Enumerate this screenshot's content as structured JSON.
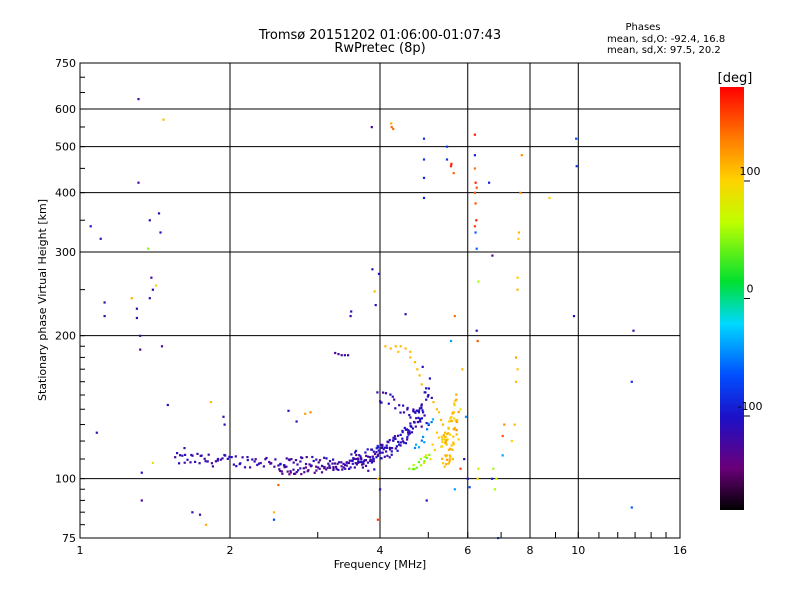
{
  "chart_data": {
    "type": "scatter",
    "title": "Tromsø 20151202 01:06:00-01:07:43",
    "subtitle": "RwPretec (8p)",
    "xlabel": "Frequency [MHz]",
    "ylabel": "Stationary phase Virtual Height [km]",
    "x_scale": "log",
    "y_scale": "log",
    "xlim": [
      1,
      16
    ],
    "ylim": [
      75,
      750
    ],
    "x_ticks": [
      {
        "value": 1,
        "label": "1"
      },
      {
        "value": 2,
        "label": "2"
      },
      {
        "value": 4,
        "label": "4"
      },
      {
        "value": 6,
        "label": "6"
      },
      {
        "value": 8,
        "label": "8"
      },
      {
        "value": 10,
        "label": "10"
      },
      {
        "value": 16,
        "label": "16"
      }
    ],
    "y_ticks": [
      {
        "value": 75,
        "label": "75"
      },
      {
        "value": 100,
        "label": "100"
      },
      {
        "value": 200,
        "label": "200"
      },
      {
        "value": 300,
        "label": "300"
      },
      {
        "value": 400,
        "label": "400"
      },
      {
        "value": 500,
        "label": "500"
      },
      {
        "value": 600,
        "label": "600"
      },
      {
        "value": 750,
        "label": "750"
      }
    ],
    "grid": true,
    "stats": {
      "heading": "Phases",
      "line1": "mean, sd,O: -92.4, 16.8",
      "line2": "mean, sd,X:  97.5, 20.2"
    },
    "colorbar": {
      "label": "[deg]",
      "range": [
        -180,
        180
      ],
      "ticks": [
        {
          "value": 100,
          "label": "100"
        },
        {
          "value": 0,
          "label": "0"
        },
        {
          "value": -100,
          "label": "-100"
        }
      ]
    },
    "series": [
      {
        "points": [
          [
            1.05,
            340,
            -100
          ],
          [
            1.08,
            125,
            -110
          ],
          [
            1.1,
            320,
            -110
          ],
          [
            1.12,
            235,
            -115
          ],
          [
            1.12,
            220,
            -120
          ],
          [
            1.27,
            240,
            115
          ],
          [
            1.3,
            228,
            -110
          ],
          [
            1.3,
            218,
            -110
          ],
          [
            1.31,
            630,
            -125
          ],
          [
            1.31,
            420,
            -125
          ],
          [
            1.32,
            200,
            -115
          ],
          [
            1.32,
            187,
            -130
          ],
          [
            1.33,
            103,
            -110
          ],
          [
            1.33,
            90,
            -125
          ],
          [
            1.37,
            305,
            50
          ],
          [
            1.38,
            350,
            -110
          ],
          [
            1.39,
            265,
            -120
          ],
          [
            1.4,
            250,
            -112
          ],
          [
            1.38,
            240,
            -115
          ],
          [
            1.4,
            108,
            85
          ],
          [
            1.42,
            255,
            100
          ],
          [
            1.44,
            362,
            -110
          ],
          [
            1.45,
            330,
            -100
          ],
          [
            1.46,
            190,
            -130
          ],
          [
            1.47,
            570,
            110
          ],
          [
            1.5,
            143,
            -110
          ],
          [
            1.62,
            116,
            -110
          ],
          [
            1.68,
            85,
            -115
          ],
          [
            1.74,
            84,
            -120
          ],
          [
            1.79,
            80,
            115
          ],
          [
            1.83,
            145,
            110
          ],
          [
            1.94,
            135,
            -110
          ],
          [
            1.95,
            130,
            -100
          ],
          [
            2.45,
            85,
            110
          ],
          [
            2.45,
            82,
            -75
          ],
          [
            2.5,
            97,
            145
          ],
          [
            2.62,
            139,
            -110
          ],
          [
            2.72,
            132,
            -110
          ],
          [
            2.83,
            137,
            120
          ],
          [
            2.9,
            138,
            130
          ],
          [
            3.35,
            182,
            -120
          ],
          [
            3.4,
            182,
            -120
          ],
          [
            3.3,
            183,
            -125
          ],
          [
            3.25,
            184,
            -125
          ],
          [
            3.45,
            182,
            -120
          ],
          [
            3.49,
            220,
            -120
          ],
          [
            3.5,
            225,
            -110
          ],
          [
            3.85,
            550,
            -125
          ],
          [
            3.86,
            276,
            -110
          ],
          [
            3.9,
            248,
            110
          ],
          [
            3.92,
            232,
            -110
          ],
          [
            3.98,
            270,
            -105
          ],
          [
            3.96,
            82,
            160
          ],
          [
            3.95,
            152,
            -115
          ],
          [
            3.96,
            100,
            110
          ],
          [
            4.0,
            95,
            -115
          ],
          [
            4.21,
            560,
            115
          ],
          [
            4.22,
            550,
            145
          ],
          [
            4.25,
            545,
            140
          ],
          [
            4.5,
            222,
            -110
          ],
          [
            4.9,
            520,
            -80
          ],
          [
            4.9,
            470,
            -80
          ],
          [
            4.9,
            430,
            -90
          ],
          [
            4.9,
            390,
            -90
          ],
          [
            4.96,
            90,
            -100
          ],
          [
            5.45,
            500,
            -80
          ],
          [
            5.45,
            470,
            -80
          ],
          [
            5.56,
            460,
            170
          ],
          [
            5.55,
            455,
            170
          ],
          [
            5.62,
            440,
            145
          ],
          [
            5.65,
            95,
            -40
          ],
          [
            5.85,
            170,
            110
          ],
          [
            5.55,
            195,
            -40
          ],
          [
            5.65,
            220,
            140
          ],
          [
            5.8,
            140,
            85
          ],
          [
            5.9,
            110,
            -110
          ],
          [
            5.95,
            135,
            -45
          ],
          [
            6.0,
            100,
            -100
          ],
          [
            6.05,
            96,
            -70
          ],
          [
            5.8,
            105,
            160
          ],
          [
            6.2,
            530,
            170
          ],
          [
            6.2,
            480,
            -90
          ],
          [
            6.2,
            450,
            140
          ],
          [
            6.22,
            420,
            170
          ],
          [
            6.25,
            410,
            150
          ],
          [
            6.2,
            400,
            150
          ],
          [
            6.22,
            380,
            150
          ],
          [
            6.24,
            350,
            170
          ],
          [
            6.2,
            340,
            160
          ],
          [
            6.22,
            330,
            -60
          ],
          [
            6.25,
            305,
            -60
          ],
          [
            6.25,
            205,
            -110
          ],
          [
            6.28,
            195,
            150
          ],
          [
            6.3,
            260,
            60
          ],
          [
            6.3,
            105,
            80
          ],
          [
            6.28,
            100,
            90
          ],
          [
            6.62,
            420,
            -90
          ],
          [
            6.72,
            295,
            -130
          ],
          [
            6.71,
            100,
            -90
          ],
          [
            6.75,
            105,
            55
          ],
          [
            6.8,
            95,
            60
          ],
          [
            6.85,
            100,
            80
          ],
          [
            6.9,
            75,
            -60
          ],
          [
            7.05,
            112,
            -40
          ],
          [
            7.05,
            123,
            150
          ],
          [
            7.1,
            130,
            130
          ],
          [
            7.35,
            120,
            100
          ],
          [
            7.45,
            130,
            110
          ],
          [
            7.5,
            180,
            120
          ],
          [
            7.55,
            250,
            110
          ],
          [
            7.55,
            265,
            100
          ],
          [
            7.58,
            320,
            100
          ],
          [
            7.6,
            330,
            110
          ],
          [
            7.65,
            400,
            130
          ],
          [
            7.7,
            480,
            130
          ],
          [
            7.5,
            160,
            110
          ],
          [
            7.55,
            170,
            105
          ],
          [
            8.75,
            390,
            100
          ],
          [
            9.8,
            220,
            -110
          ],
          [
            9.9,
            520,
            -70
          ],
          [
            9.92,
            455,
            -80
          ],
          [
            12.9,
            205,
            -120
          ],
          [
            12.8,
            160,
            -80
          ],
          [
            12.8,
            87,
            -60
          ],
          [
            4.1,
            190,
            110
          ],
          [
            4.2,
            188,
            110
          ],
          [
            4.3,
            190,
            110
          ],
          [
            4.35,
            185,
            105
          ],
          [
            4.4,
            190,
            110
          ],
          [
            4.5,
            188,
            110
          ],
          [
            4.6,
            185,
            110
          ],
          [
            4.6,
            180,
            110
          ],
          [
            4.7,
            176,
            110
          ],
          [
            4.75,
            170,
            110
          ],
          [
            4.8,
            165,
            110
          ],
          [
            4.85,
            158,
            110
          ],
          [
            4.87,
            172,
            -110
          ],
          [
            4.95,
            155,
            -110
          ],
          [
            5.0,
            150,
            -110
          ],
          [
            5.08,
            148,
            -110
          ],
          [
            5.12,
            145,
            110
          ],
          [
            5.2,
            140,
            110
          ],
          [
            5.25,
            138,
            105
          ],
          [
            5.3,
            133,
            110
          ],
          [
            5.35,
            130,
            110
          ],
          [
            5.4,
            125,
            110
          ],
          [
            5.42,
            120,
            110
          ],
          [
            5.44,
            118,
            105
          ],
          [
            5.5,
            115,
            110
          ],
          [
            5.52,
            112,
            110
          ],
          [
            5.6,
            110,
            110
          ],
          [
            5.65,
            128,
            110
          ],
          [
            5.7,
            124,
            110
          ],
          [
            5.75,
            121,
            100
          ],
          [
            5.1,
            118,
            100
          ],
          [
            5.15,
            115,
            100
          ],
          [
            5.2,
            125,
            105
          ],
          [
            5.25,
            122,
            100
          ],
          [
            4.95,
            112,
            90
          ],
          [
            5.05,
            110,
            85
          ],
          [
            4.9,
            108,
            80
          ]
        ]
      }
    ],
    "traces": [
      {
        "phase": -115,
        "from": [
          1.55,
          110
        ],
        "to": [
          3.9,
          107
        ],
        "n": 110,
        "spread": 0.06,
        "curve": "flat"
      },
      {
        "phase": -125,
        "from": [
          2.5,
          104
        ],
        "to": [
          4.0,
          112
        ],
        "n": 70,
        "spread": 0.04,
        "curve": "rising"
      },
      {
        "phase": -110,
        "from": [
          3.5,
          110
        ],
        "to": [
          4.9,
          140
        ],
        "n": 70,
        "spread": 0.08,
        "curve": "rising"
      },
      {
        "phase": -105,
        "from": [
          3.95,
          115
        ],
        "to": [
          5.05,
          160
        ],
        "n": 45,
        "spread": 0.1,
        "curve": "rising"
      },
      {
        "phase": -115,
        "from": [
          4.0,
          150
        ],
        "to": [
          5.0,
          130
        ],
        "n": 25,
        "spread": 0.07,
        "curve": "flat"
      },
      {
        "phase": 105,
        "from": [
          5.3,
          120
        ],
        "to": [
          5.7,
          150
        ],
        "n": 35,
        "spread": 0.06,
        "curve": "rising"
      },
      {
        "phase": 110,
        "from": [
          5.35,
          108
        ],
        "to": [
          5.75,
          140
        ],
        "n": 25,
        "spread": 0.07,
        "curve": "rising"
      },
      {
        "phase": 55,
        "from": [
          4.6,
          104
        ],
        "to": [
          5.0,
          112
        ],
        "n": 12,
        "spread": 0.03,
        "curve": "flat"
      },
      {
        "phase": -40,
        "from": [
          4.7,
          118
        ],
        "to": [
          5.1,
          135
        ],
        "n": 10,
        "spread": 0.05,
        "curve": "rising"
      }
    ]
  }
}
